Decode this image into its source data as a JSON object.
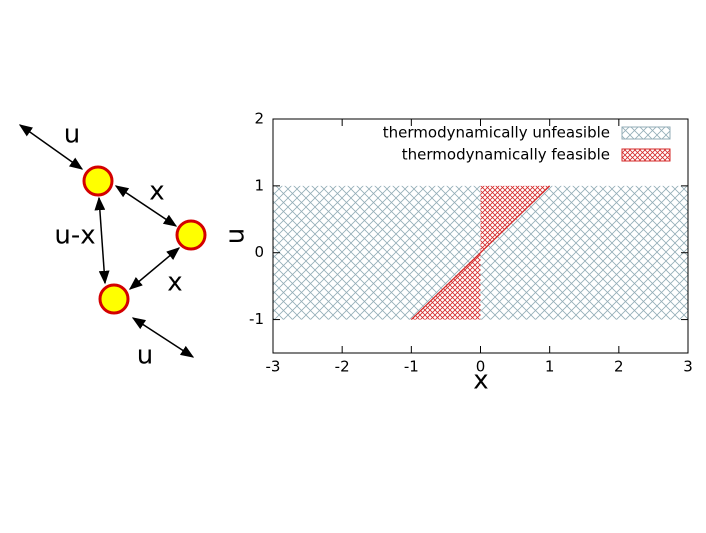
{
  "diagram": {
    "labels": [
      "u",
      "x",
      "u-x",
      "x",
      "u"
    ]
  },
  "chart_data": {
    "type": "region",
    "x_label": "x",
    "y_label": "u",
    "xlim": [
      -3,
      3
    ],
    "ylim": [
      -1.5,
      2
    ],
    "xticks": [
      -3,
      -2,
      -1,
      0,
      1,
      2,
      3
    ],
    "yticks": [
      -1,
      0,
      1,
      2
    ],
    "legend": "top-right",
    "series": [
      {
        "name": "thermodynamically unfeasible",
        "color": "#93adb7",
        "x": [
          -3,
          3,
          3,
          -3
        ],
        "y": [
          -1,
          -1,
          1,
          1
        ]
      },
      {
        "name": "thermodynamically feasible",
        "color": "#d42a2a",
        "x": [
          -1,
          0,
          0,
          1,
          0,
          0
        ],
        "y": [
          -1,
          -1,
          0,
          1,
          1,
          0
        ]
      }
    ],
    "boundary": {
      "color": "#d42a2a",
      "x": [
        -1,
        1
      ],
      "y": [
        -1,
        1
      ]
    }
  }
}
